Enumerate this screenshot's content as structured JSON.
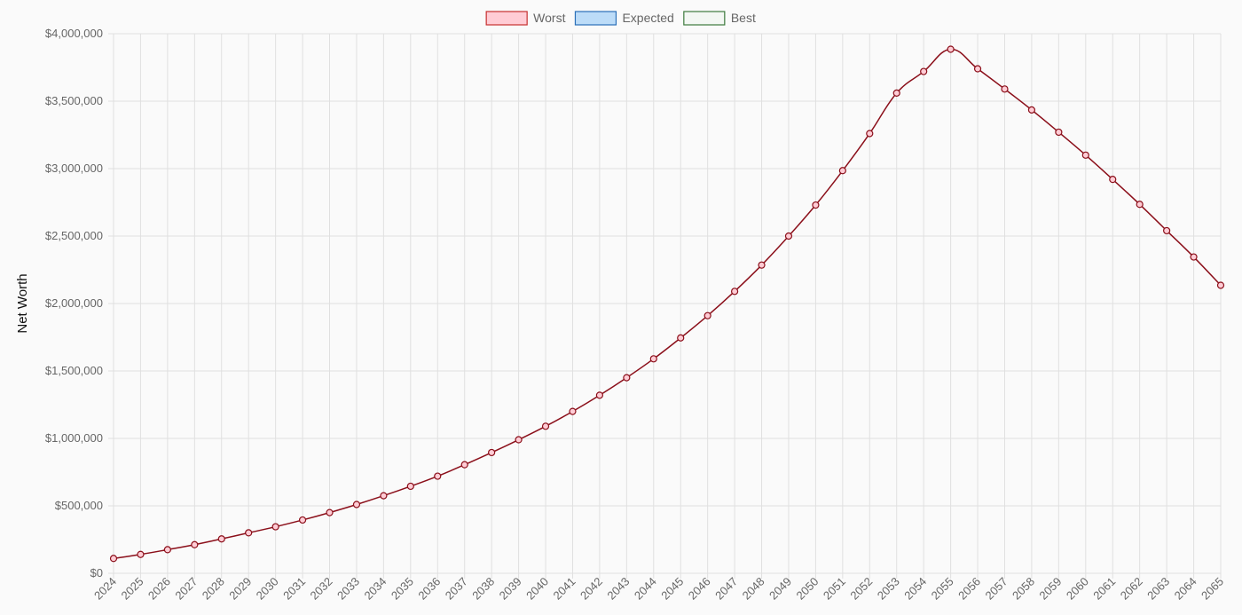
{
  "chart_data": {
    "type": "line",
    "title": "",
    "xlabel": "",
    "ylabel": "Net Worth",
    "x": [
      "2024",
      "2025",
      "2026",
      "2027",
      "2028",
      "2029",
      "2030",
      "2031",
      "2032",
      "2033",
      "2034",
      "2035",
      "2036",
      "2037",
      "2038",
      "2039",
      "2040",
      "2041",
      "2042",
      "2043",
      "2044",
      "2045",
      "2046",
      "2047",
      "2048",
      "2049",
      "2050",
      "2051",
      "2052",
      "2053",
      "2054",
      "2055",
      "2056",
      "2057",
      "2058",
      "2059",
      "2060",
      "2061",
      "2062",
      "2063",
      "2064",
      "2065"
    ],
    "ylim": [
      0,
      4000000
    ],
    "yticks": [
      0,
      500000,
      1000000,
      1500000,
      2000000,
      2500000,
      3000000,
      3500000,
      4000000
    ],
    "ytick_labels": [
      "$0",
      "$500,000",
      "$1,000,000",
      "$1,500,000",
      "$2,000,000",
      "$2,500,000",
      "$3,000,000",
      "$3,500,000",
      "$4,000,000"
    ],
    "grid": true,
    "legend_position": "top-center",
    "legend": [
      {
        "name": "Worst",
        "fill": "#ffccd5",
        "stroke": "#c62f2f"
      },
      {
        "name": "Expected",
        "fill": "#bcdcf8",
        "stroke": "#2a6fb8"
      },
      {
        "name": "Best",
        "fill": "#f3f7f3",
        "stroke": "#3c7a3c"
      }
    ],
    "series": [
      {
        "name": "Worst",
        "line_color": "#8b0f1a",
        "point_fill": "#ffccd5",
        "values": [
          110000,
          140000,
          175000,
          212000,
          255000,
          300000,
          345000,
          395000,
          450000,
          510000,
          575000,
          645000,
          720000,
          805000,
          895000,
          990000,
          1090000,
          1200000,
          1320000,
          1450000,
          1590000,
          1745000,
          1910000,
          2090000,
          2285000,
          2500000,
          2730000,
          2985000,
          3260000,
          3560000,
          3720000,
          3885000,
          3740000,
          3590000,
          3435000,
          3270000,
          3100000,
          2920000,
          2735000,
          2540000,
          2345000,
          2135000
        ]
      }
    ]
  }
}
